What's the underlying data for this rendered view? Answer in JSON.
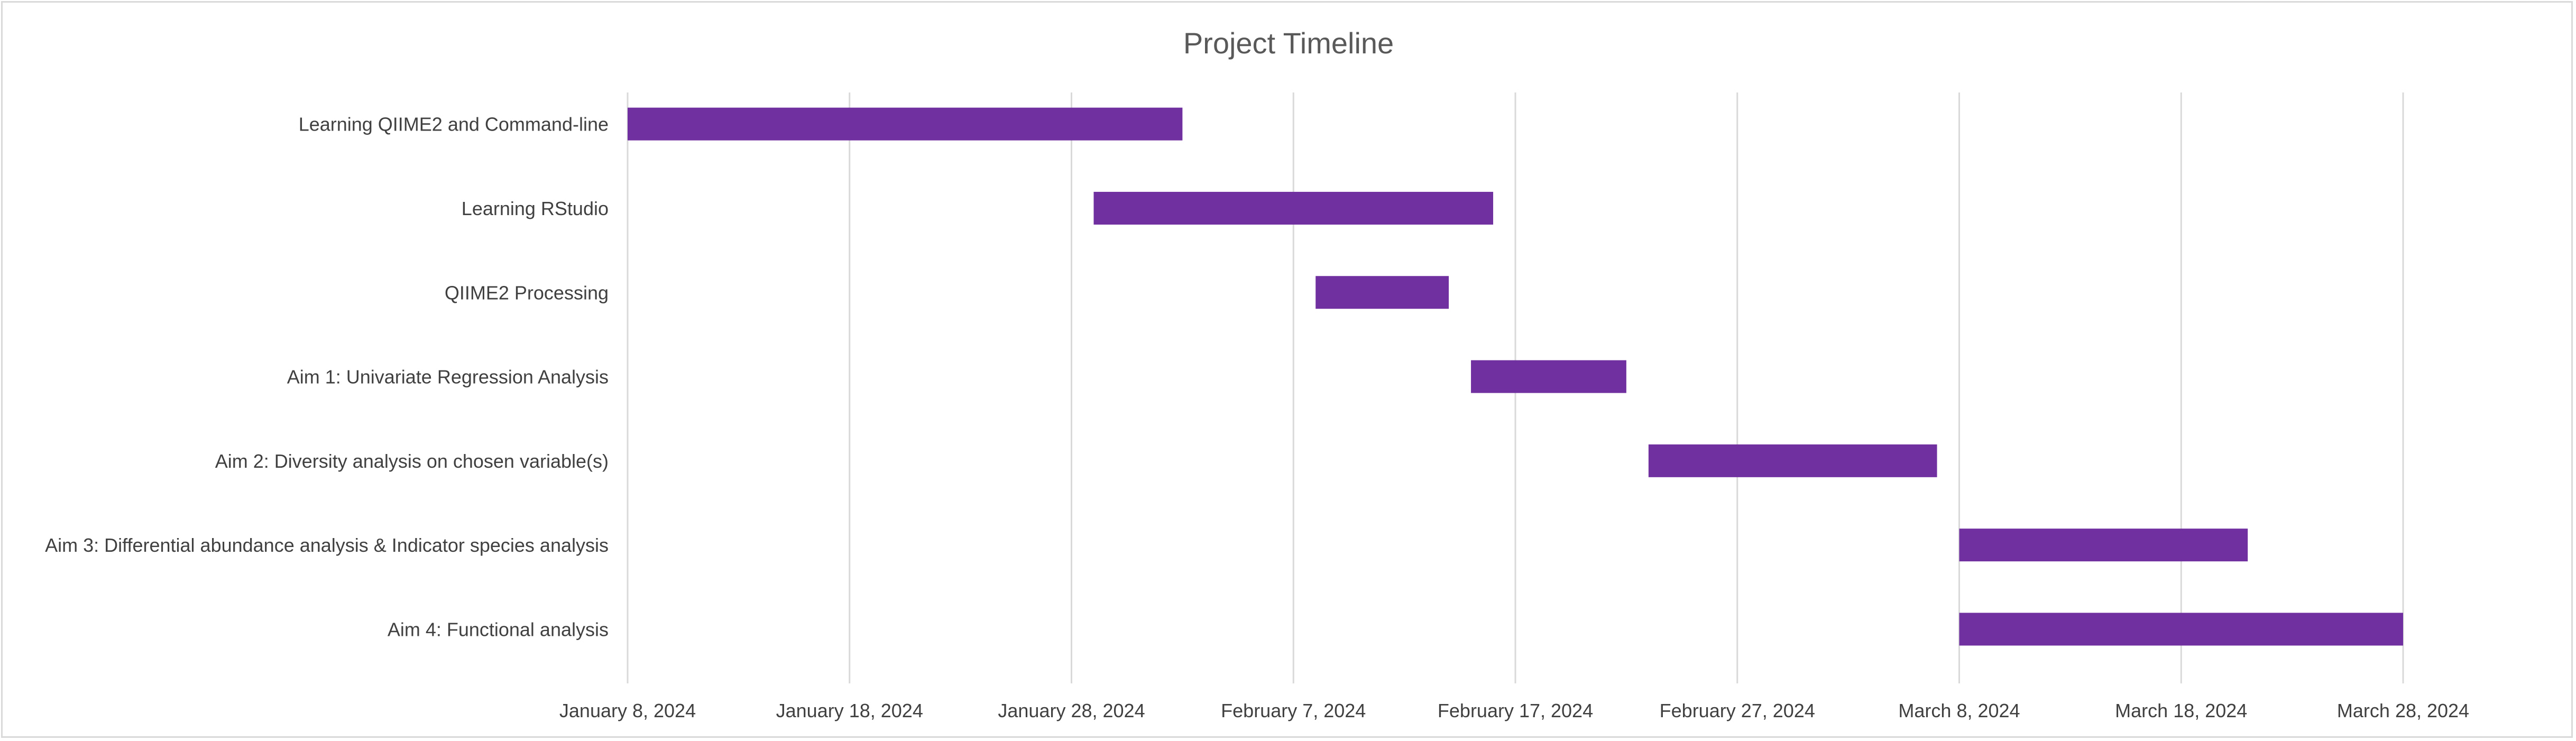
{
  "chart_data": {
    "type": "bar",
    "orientation": "horizontal",
    "title": "Project Timeline",
    "x_scale": "date",
    "xlim": [
      "2024-01-08",
      "2024-03-28"
    ],
    "grid": "vertical",
    "x_ticks": [
      {
        "date": "2024-01-08",
        "label": "January 8, 2024"
      },
      {
        "date": "2024-01-18",
        "label": "January 18, 2024"
      },
      {
        "date": "2024-01-28",
        "label": "January 28, 2024"
      },
      {
        "date": "2024-02-07",
        "label": "February 7, 2024"
      },
      {
        "date": "2024-02-17",
        "label": "February 17, 2024"
      },
      {
        "date": "2024-02-27",
        "label": "February 27, 2024"
      },
      {
        "date": "2024-03-08",
        "label": "March 8, 2024"
      },
      {
        "date": "2024-03-18",
        "label": "March 18, 2024"
      },
      {
        "date": "2024-03-28",
        "label": "March 28, 2024"
      }
    ],
    "bar_color": "#7030a0",
    "tasks": [
      {
        "label": "Learning QIIME2 and Command-line",
        "start": "2024-01-08",
        "end": "2024-02-02"
      },
      {
        "label": "Learning RStudio",
        "start": "2024-01-29",
        "end": "2024-02-16"
      },
      {
        "label": "QIIME2 Processing",
        "start": "2024-02-08",
        "end": "2024-02-14"
      },
      {
        "label": "Aim 1: Univariate Regression Analysis",
        "start": "2024-02-15",
        "end": "2024-02-22"
      },
      {
        "label": "Aim 2: Diversity analysis on chosen variable(s)",
        "start": "2024-02-23",
        "end": "2024-03-07"
      },
      {
        "label": "Aim 3: Differential abundance analysis & Indicator species analysis",
        "start": "2024-03-08",
        "end": "2024-03-21"
      },
      {
        "label": "Aim 4: Functional analysis ",
        "start": "2024-03-08",
        "end": "2024-03-28"
      }
    ]
  }
}
